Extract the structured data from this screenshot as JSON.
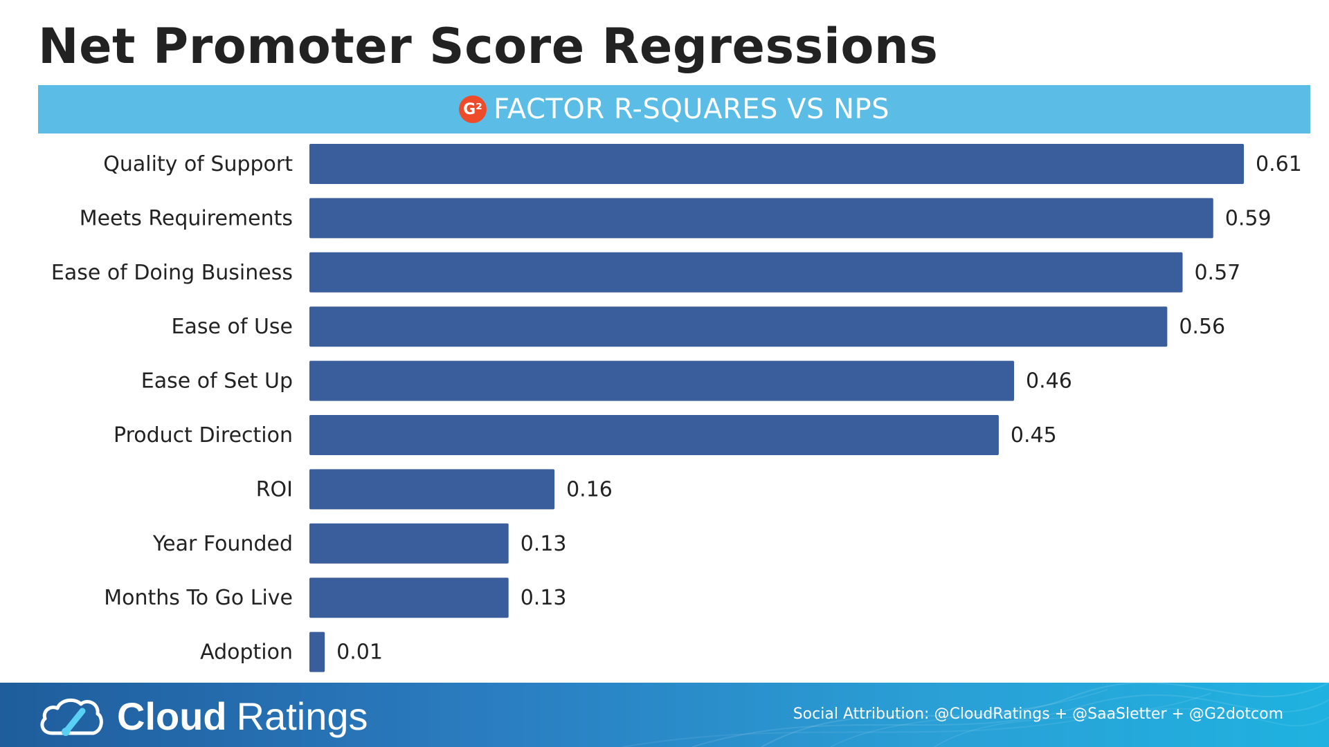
{
  "page": {
    "title": "Net Promoter Score Regressions"
  },
  "banner": {
    "logo_text": "G²",
    "logo_icon": "g2-logo-icon",
    "text": "FACTOR R-SQUARES VS NPS",
    "color": "#5bbde6"
  },
  "chart_data": {
    "type": "bar",
    "orientation": "horizontal",
    "title": "FACTOR R-SQUARES VS NPS",
    "categories": [
      "Quality of Support",
      "Meets Requirements",
      "Ease of Doing Business",
      "Ease of Use",
      "Ease of Set Up",
      "Product Direction",
      "ROI",
      "Year Founded",
      "Months To Go Live",
      "Adoption"
    ],
    "values": [
      0.61,
      0.59,
      0.57,
      0.56,
      0.46,
      0.45,
      0.16,
      0.13,
      0.13,
      0.01
    ],
    "value_labels": [
      "0.61",
      "0.59",
      "0.57",
      "0.56",
      "0.46",
      "0.45",
      "0.16",
      "0.13",
      "0.13",
      "0.01"
    ],
    "xlim": [
      0,
      0.61
    ],
    "bar_color": "#3a5d9c",
    "grid": false,
    "legend": "none",
    "xlabel": "",
    "ylabel": ""
  },
  "footer": {
    "brand_bold": "Cloud",
    "brand_light": "Ratings",
    "brand_icon": "cloud-gauge-icon",
    "attribution": "Social Attribution: @CloudRatings + @SaaSletter + @G2dotcom"
  }
}
